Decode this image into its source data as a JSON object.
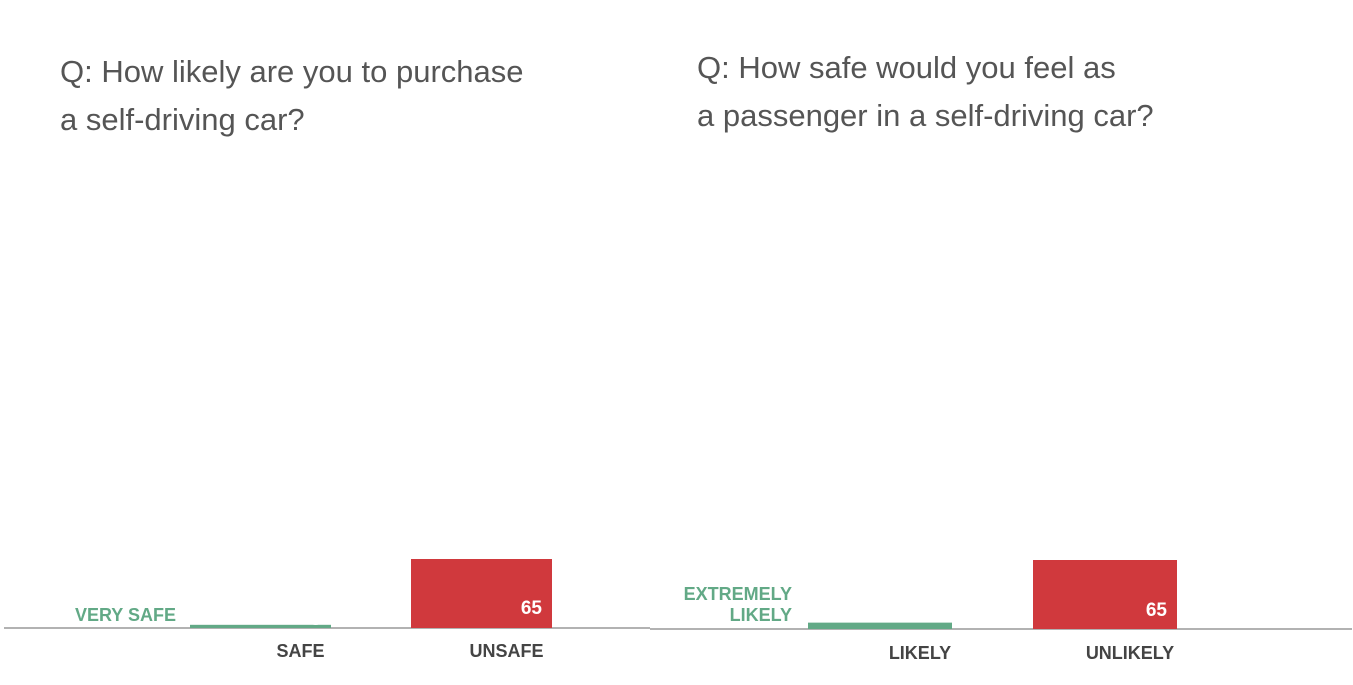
{
  "chart_data": [
    {
      "type": "bar",
      "title": "Q:  How likely are you to purchase\na self-driving car?",
      "categories": [
        "SAFE",
        "UNSAFE"
      ],
      "values": [
        3,
        65
      ],
      "colors": [
        "#62a986",
        "#d0393d"
      ],
      "side_label": "VERY SAFE",
      "side_label_color": "#62a986",
      "axis_color": "#999999"
    },
    {
      "type": "bar",
      "title": "Q:  How safe would you feel as\na passenger in a self-driving car?",
      "categories": [
        "LIKELY",
        "UNLIKELY"
      ],
      "values": [
        6,
        65
      ],
      "colors": [
        "#62a986",
        "#d0393d"
      ],
      "side_label": "EXTREMELY\nLIKELY",
      "side_label_color": "#62a986",
      "axis_color": "#999999"
    }
  ]
}
